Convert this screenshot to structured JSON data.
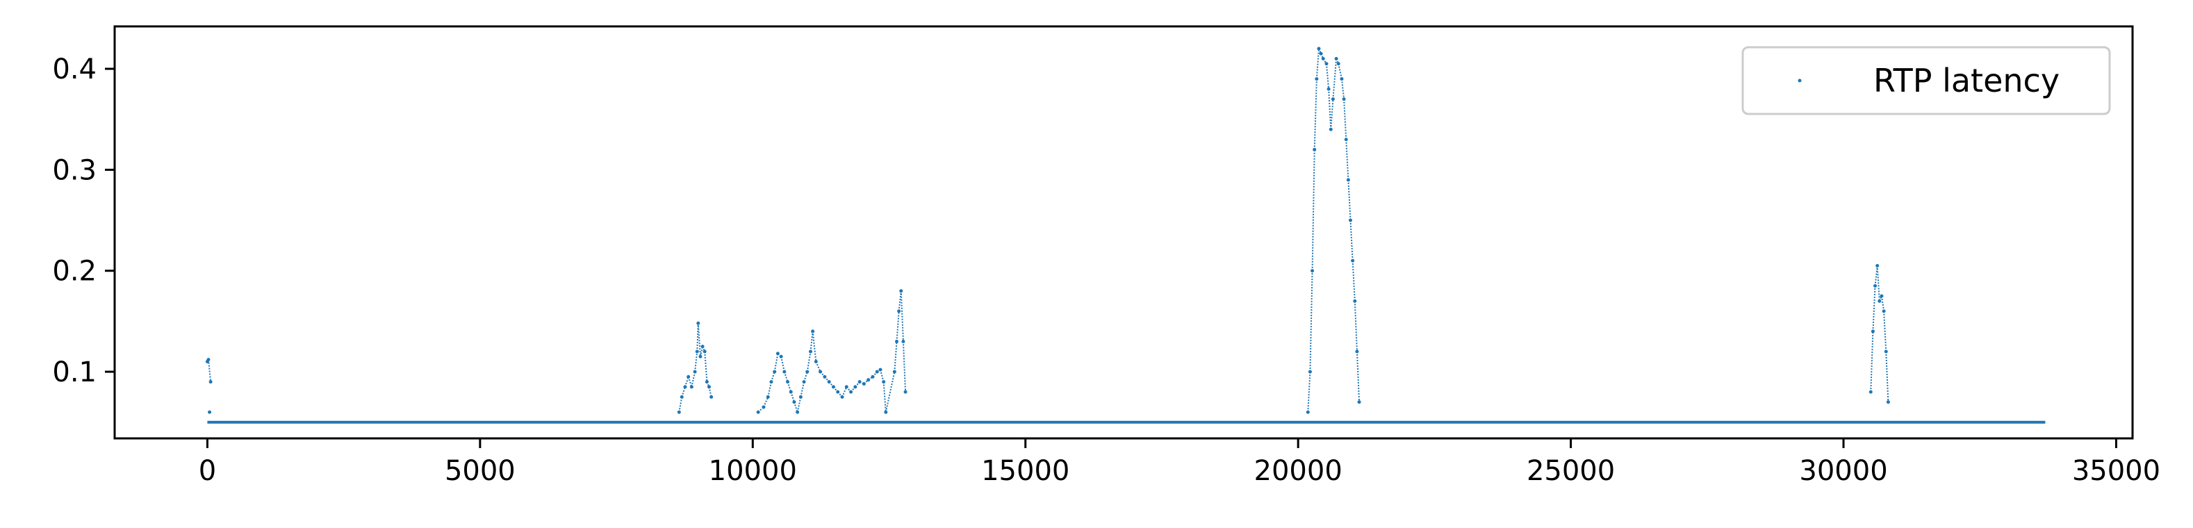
{
  "chart_data": {
    "type": "scatter",
    "title": "",
    "xlabel": "",
    "ylabel": "",
    "xlim": [
      -1700,
      35300
    ],
    "ylim": [
      0.034,
      0.442
    ],
    "xticks": [
      0,
      5000,
      10000,
      15000,
      20000,
      25000,
      30000,
      35000
    ],
    "xtick_labels": [
      "0",
      "5000",
      "10000",
      "15000",
      "20000",
      "25000",
      "30000",
      "35000"
    ],
    "yticks": [
      0.1,
      0.2,
      0.3,
      0.4
    ],
    "ytick_labels": [
      "0.1",
      "0.2",
      "0.3",
      "0.4"
    ],
    "grid": false,
    "legend_position": "top-right",
    "series": [
      {
        "name": "RTP latency",
        "color": "#1f77b4",
        "baseline": 0.05,
        "x_range": [
          0,
          33700
        ],
        "points": [
          [
            0,
            0.11
          ],
          [
            20,
            0.112
          ],
          [
            60,
            0.09
          ],
          [
            40,
            0.06
          ],
          [
            8650,
            0.06
          ],
          [
            8700,
            0.075
          ],
          [
            8760,
            0.085
          ],
          [
            8820,
            0.095
          ],
          [
            8880,
            0.085
          ],
          [
            8940,
            0.1
          ],
          [
            8980,
            0.12
          ],
          [
            9000,
            0.148
          ],
          [
            9040,
            0.115
          ],
          [
            9080,
            0.125
          ],
          [
            9120,
            0.12
          ],
          [
            9160,
            0.09
          ],
          [
            9200,
            0.085
          ],
          [
            9240,
            0.075
          ],
          [
            10100,
            0.06
          ],
          [
            10200,
            0.065
          ],
          [
            10280,
            0.075
          ],
          [
            10340,
            0.09
          ],
          [
            10400,
            0.1
          ],
          [
            10460,
            0.118
          ],
          [
            10520,
            0.115
          ],
          [
            10580,
            0.1
          ],
          [
            10640,
            0.09
          ],
          [
            10700,
            0.08
          ],
          [
            10760,
            0.07
          ],
          [
            10820,
            0.06
          ],
          [
            10880,
            0.075
          ],
          [
            10940,
            0.09
          ],
          [
            11000,
            0.1
          ],
          [
            11060,
            0.12
          ],
          [
            11100,
            0.14
          ],
          [
            11160,
            0.11
          ],
          [
            11240,
            0.1
          ],
          [
            11320,
            0.095
          ],
          [
            11400,
            0.09
          ],
          [
            11480,
            0.085
          ],
          [
            11560,
            0.08
          ],
          [
            11640,
            0.075
          ],
          [
            11720,
            0.085
          ],
          [
            11800,
            0.08
          ],
          [
            11880,
            0.085
          ],
          [
            11960,
            0.09
          ],
          [
            12040,
            0.088
          ],
          [
            12120,
            0.092
          ],
          [
            12200,
            0.095
          ],
          [
            12280,
            0.1
          ],
          [
            12340,
            0.102
          ],
          [
            12400,
            0.09
          ],
          [
            12440,
            0.06
          ],
          [
            12600,
            0.1
          ],
          [
            12640,
            0.13
          ],
          [
            12680,
            0.16
          ],
          [
            12720,
            0.18
          ],
          [
            12760,
            0.13
          ],
          [
            12800,
            0.08
          ],
          [
            20180,
            0.06
          ],
          [
            20220,
            0.1
          ],
          [
            20260,
            0.2
          ],
          [
            20300,
            0.32
          ],
          [
            20340,
            0.39
          ],
          [
            20380,
            0.42
          ],
          [
            20420,
            0.415
          ],
          [
            20460,
            0.41
          ],
          [
            20520,
            0.405
          ],
          [
            20560,
            0.38
          ],
          [
            20600,
            0.34
          ],
          [
            20640,
            0.37
          ],
          [
            20700,
            0.41
          ],
          [
            20740,
            0.405
          ],
          [
            20800,
            0.39
          ],
          [
            20840,
            0.37
          ],
          [
            20880,
            0.33
          ],
          [
            20920,
            0.29
          ],
          [
            20960,
            0.25
          ],
          [
            21000,
            0.21
          ],
          [
            21040,
            0.17
          ],
          [
            21080,
            0.12
          ],
          [
            21120,
            0.07
          ],
          [
            30500,
            0.08
          ],
          [
            30540,
            0.14
          ],
          [
            30580,
            0.185
          ],
          [
            30620,
            0.205
          ],
          [
            30660,
            0.17
          ],
          [
            30700,
            0.175
          ],
          [
            30740,
            0.16
          ],
          [
            30780,
            0.12
          ],
          [
            30820,
            0.07
          ]
        ]
      }
    ]
  }
}
